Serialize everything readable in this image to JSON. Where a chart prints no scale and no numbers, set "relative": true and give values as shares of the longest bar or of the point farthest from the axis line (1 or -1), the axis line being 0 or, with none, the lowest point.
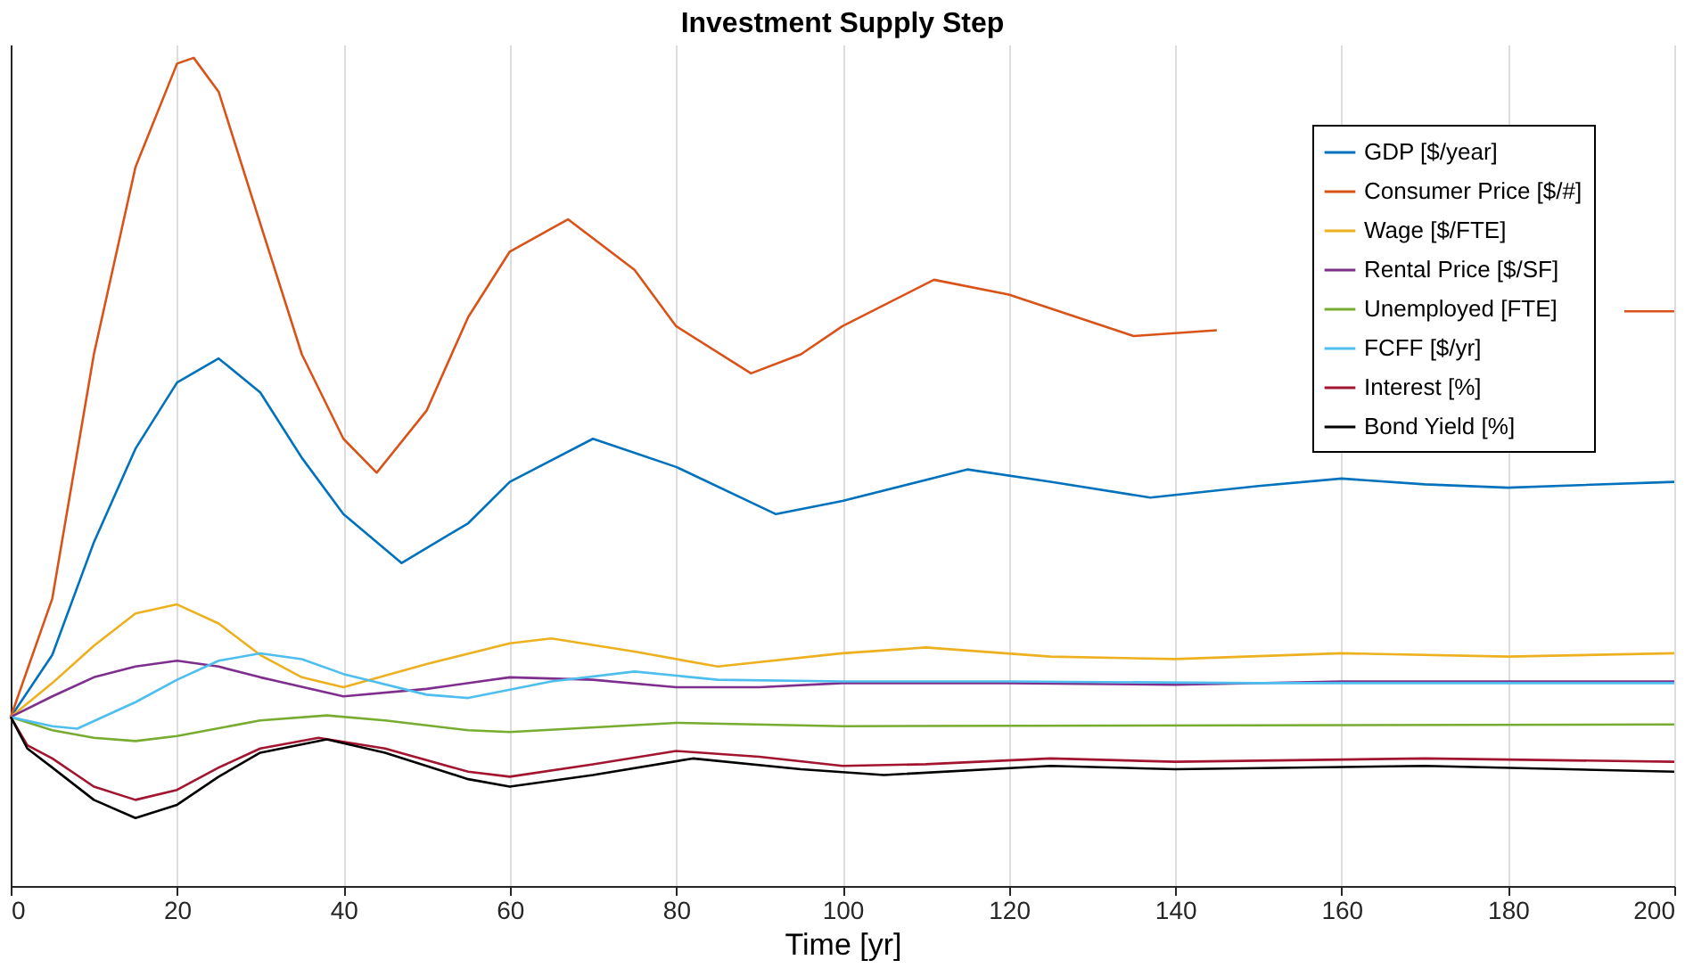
{
  "chart_data": {
    "type": "line",
    "title": "Investment Supply Step",
    "xlabel": "Time [yr]",
    "relative": true,
    "xlim": [
      0,
      200
    ],
    "xticks": [
      0,
      20,
      40,
      60,
      80,
      100,
      120,
      140,
      160,
      180,
      200
    ],
    "grid": "x",
    "legend": "top right",
    "series": [
      {
        "name": "GDP [$/year]",
        "color": "#0072bd",
        "x": [
          0,
          5,
          10,
          15,
          20,
          25,
          30,
          35,
          40,
          47,
          55,
          60,
          70,
          80,
          92,
          100,
          115,
          125,
          137,
          150,
          160,
          170,
          180,
          200
        ],
        "values": [
          0.204,
          0.279,
          0.415,
          0.528,
          0.608,
          0.637,
          0.596,
          0.517,
          0.449,
          0.39,
          0.438,
          0.488,
          0.54,
          0.506,
          0.449,
          0.465,
          0.503,
          0.488,
          0.469,
          0.483,
          0.492,
          0.485,
          0.481,
          0.488
        ]
      },
      {
        "name": "Consumer Price [$/#]",
        "color": "#d95319",
        "x": [
          0,
          5,
          10,
          15,
          20,
          22,
          25,
          30,
          35,
          40,
          44,
          50,
          55,
          60,
          67,
          75,
          80,
          89,
          95,
          100,
          111,
          120,
          135,
          145,
          160,
          194,
          200
        ],
        "values": [
          0.204,
          0.347,
          0.642,
          0.868,
          0.993,
          1,
          0.959,
          0.8,
          0.642,
          0.54,
          0.499,
          0.574,
          0.687,
          0.766,
          0.805,
          0.744,
          0.676,
          0.619,
          0.642,
          0.676,
          0.732,
          0.714,
          0.664,
          0.671,
          null,
          0.694,
          0.694
        ]
      },
      {
        "name": "Wage [$/FTE]",
        "color": "#edb120",
        "x": [
          0,
          5,
          10,
          15,
          20,
          25,
          30,
          35,
          40,
          50,
          60,
          65,
          75,
          85,
          100,
          110,
          125,
          140,
          160,
          180,
          200
        ],
        "values": [
          0.204,
          0.245,
          0.29,
          0.329,
          0.34,
          0.317,
          0.279,
          0.252,
          0.24,
          0.268,
          0.293,
          0.299,
          0.283,
          0.265,
          0.281,
          0.288,
          0.277,
          0.274,
          0.281,
          0.277,
          0.281
        ]
      },
      {
        "name": "Rental Price [$/SF]",
        "color": "#7e2f8e",
        "x": [
          0,
          5,
          10,
          15,
          20,
          25,
          30,
          40,
          50,
          60,
          70,
          80,
          90,
          100,
          120,
          140,
          160,
          200
        ],
        "values": [
          0.204,
          0.229,
          0.252,
          0.265,
          0.272,
          0.265,
          0.252,
          0.229,
          0.238,
          0.252,
          0.249,
          0.24,
          0.24,
          0.245,
          0.245,
          0.243,
          0.247,
          0.247
        ]
      },
      {
        "name": "Unemployed [FTE]",
        "color": "#77ac30",
        "x": [
          0,
          5,
          10,
          15,
          20,
          30,
          38,
          45,
          55,
          60,
          80,
          100,
          200
        ],
        "values": [
          0.204,
          0.188,
          0.179,
          0.175,
          0.181,
          0.2,
          0.206,
          0.2,
          0.188,
          0.186,
          0.197,
          0.193,
          0.195
        ]
      },
      {
        "name": "FCFF [$/yr]",
        "color": "#4dbeee",
        "x": [
          0,
          5,
          8,
          15,
          20,
          25,
          30,
          35,
          40,
          50,
          55,
          65,
          75,
          85,
          100,
          120,
          150,
          200
        ],
        "values": [
          0.204,
          0.193,
          0.19,
          0.222,
          0.249,
          0.272,
          0.281,
          0.274,
          0.256,
          0.231,
          0.227,
          0.247,
          0.259,
          0.249,
          0.247,
          0.247,
          0.245,
          0.245
        ]
      },
      {
        "name": "Interest [%]",
        "color": "#a2142f",
        "x": [
          0,
          2,
          5,
          10,
          15,
          20,
          25,
          30,
          37,
          45,
          55,
          60,
          70,
          80,
          90,
          100,
          110,
          125,
          140,
          170,
          200
        ],
        "values": [
          0.204,
          0.17,
          0.154,
          0.12,
          0.104,
          0.116,
          0.143,
          0.166,
          0.179,
          0.166,
          0.138,
          0.132,
          0.147,
          0.163,
          0.156,
          0.145,
          0.147,
          0.154,
          0.15,
          0.154,
          0.15
        ]
      },
      {
        "name": "Bond Yield [%]",
        "color": "#000000",
        "x": [
          0,
          2,
          5,
          10,
          15,
          20,
          25,
          30,
          38,
          45,
          55,
          60,
          70,
          82,
          95,
          105,
          125,
          140,
          170,
          200
        ],
        "values": [
          0.204,
          0.166,
          0.143,
          0.104,
          0.082,
          0.098,
          0.132,
          0.161,
          0.177,
          0.161,
          0.129,
          0.12,
          0.134,
          0.154,
          0.141,
          0.134,
          0.145,
          0.141,
          0.145,
          0.138
        ]
      }
    ]
  }
}
